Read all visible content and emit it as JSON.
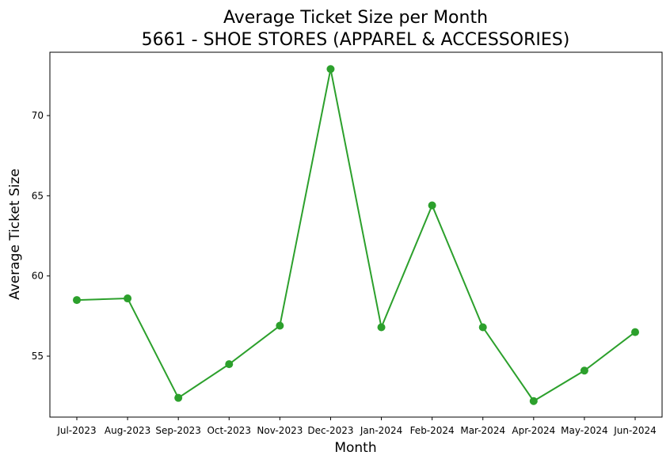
{
  "chart_data": {
    "type": "line",
    "title": "Average Ticket Size per Month",
    "subtitle": "5661 - SHOE STORES (APPAREL & ACCESSORIES)",
    "xlabel": "Month",
    "ylabel": "Average Ticket Size",
    "categories": [
      "Jul-2023",
      "Aug-2023",
      "Sep-2023",
      "Oct-2023",
      "Nov-2023",
      "Dec-2023",
      "Jan-2024",
      "Feb-2024",
      "Mar-2024",
      "Apr-2024",
      "May-2024",
      "Jun-2024"
    ],
    "series": [
      {
        "values": [
          58.5,
          58.6,
          52.4,
          54.5,
          56.9,
          72.9,
          56.8,
          64.4,
          56.8,
          52.2,
          54.1,
          56.5
        ],
        "color": "#2ca02c",
        "marker": "circle"
      }
    ],
    "yticks": [
      55,
      60,
      65,
      70
    ],
    "ylim": [
      51.2,
      73.95
    ],
    "grid": false,
    "legend": "none"
  }
}
